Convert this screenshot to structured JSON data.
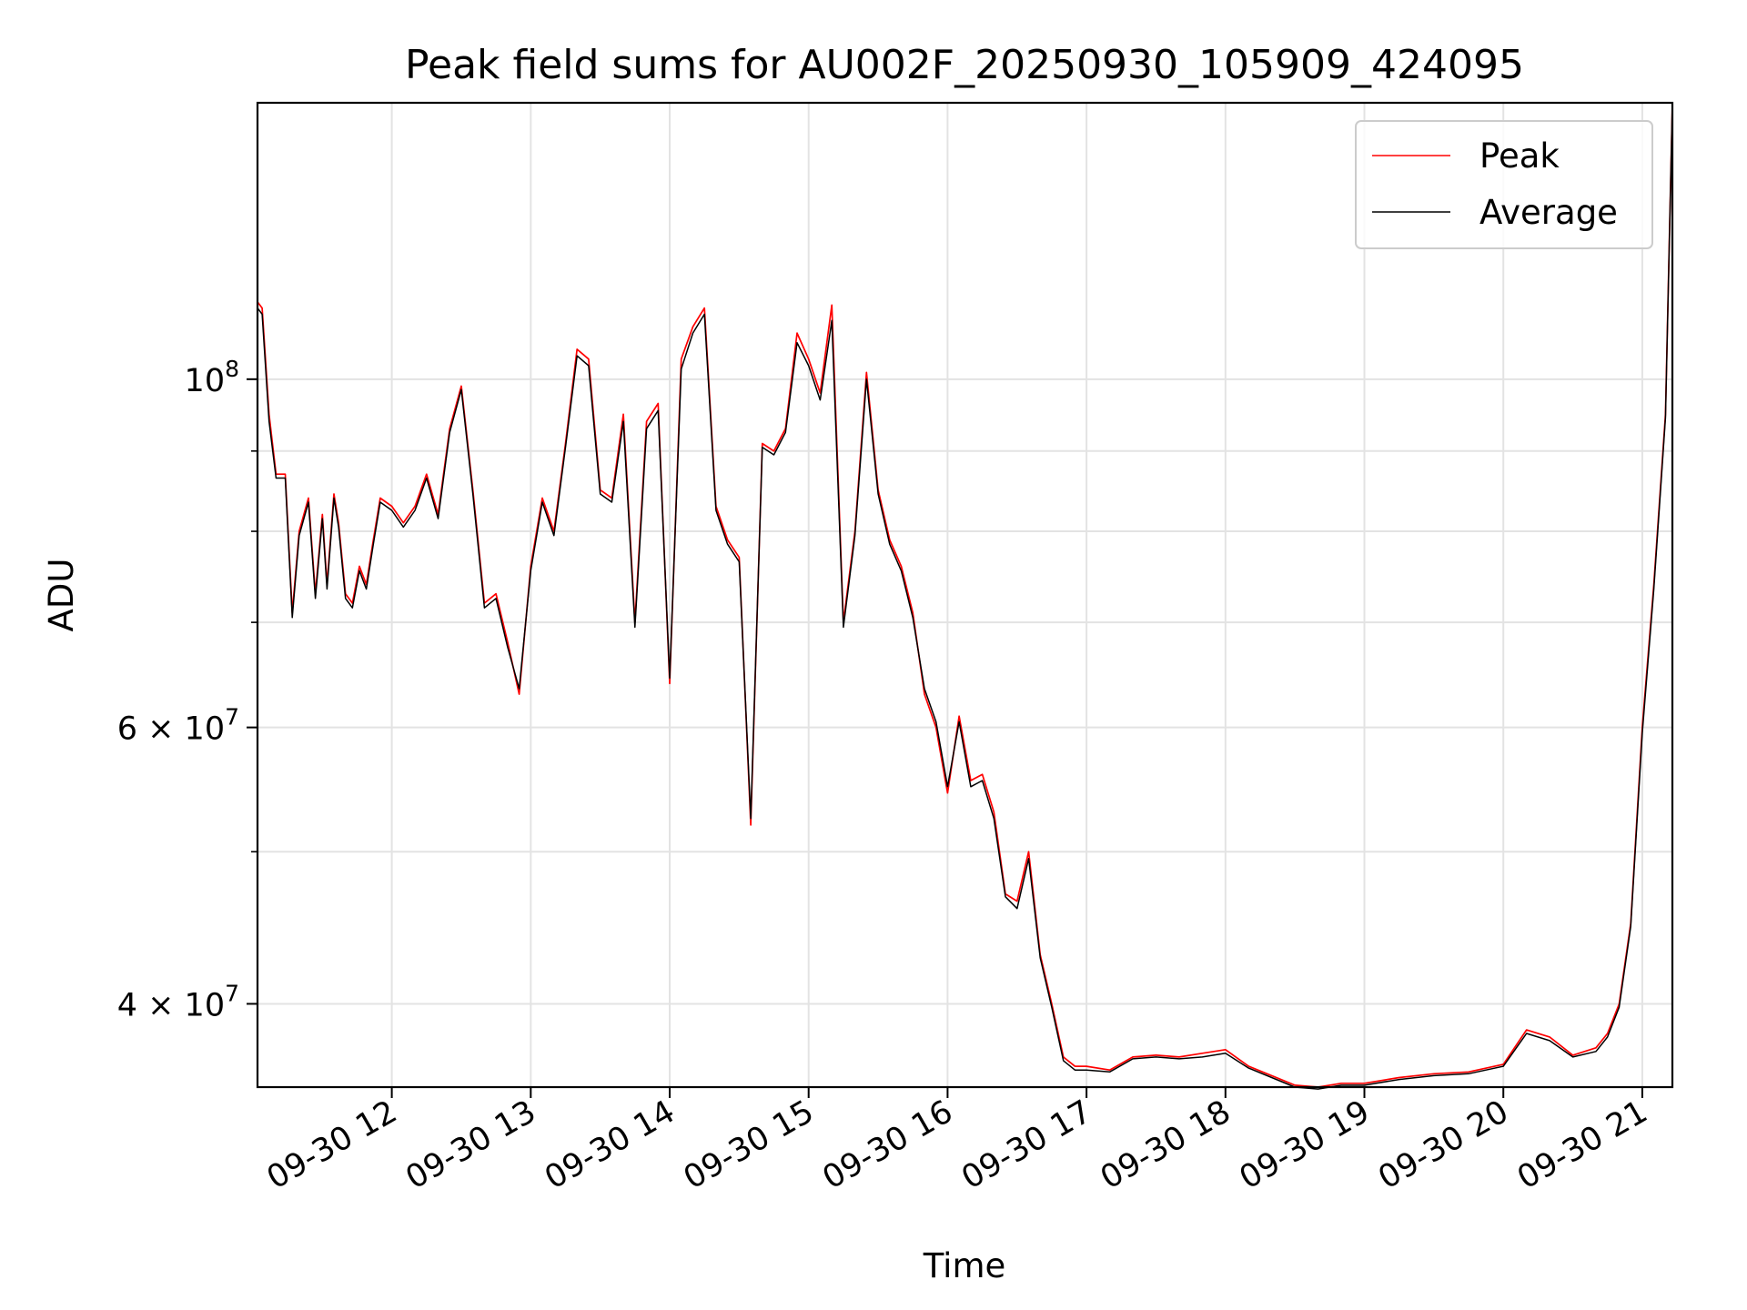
{
  "chart_data": {
    "type": "line",
    "title": "Peak field sums for AU002F_20250930_105909_424095",
    "xlabel": "Time",
    "ylabel": "ADU",
    "yscale": "log",
    "grid": true,
    "legend_position": "top-right",
    "xlim": [
      "2025-09-30 11:02",
      "2025-09-30 21:13"
    ],
    "ylim": [
      35400000,
      150000000
    ],
    "x_ticks": [
      "09-30 12",
      "09-30 13",
      "09-30 14",
      "09-30 15",
      "09-30 16",
      "09-30 17",
      "09-30 18",
      "09-30 19",
      "09-30 20",
      "09-30 21"
    ],
    "x_tick_times": [
      "2025-09-30 12:00",
      "2025-09-30 13:00",
      "2025-09-30 14:00",
      "2025-09-30 15:00",
      "2025-09-30 16:00",
      "2025-09-30 17:00",
      "2025-09-30 18:00",
      "2025-09-30 19:00",
      "2025-09-30 20:00",
      "2025-09-30 21:00"
    ],
    "y_ticks": [
      {
        "value": 100000000,
        "base": "10",
        "exp": "8",
        "mant": ""
      },
      {
        "value": 60000000,
        "base": "10",
        "exp": "7",
        "mant": "6"
      },
      {
        "value": 40000000,
        "base": "10",
        "exp": "7",
        "mant": "4"
      }
    ],
    "y_minor_grid": [
      50000000,
      70000000,
      80000000,
      90000000
    ],
    "x": [
      "2025-09-30 11:02",
      "2025-09-30 11:04",
      "2025-09-30 11:07",
      "2025-09-30 11:10",
      "2025-09-30 11:14",
      "2025-09-30 11:17",
      "2025-09-30 11:20",
      "2025-09-30 11:24",
      "2025-09-30 11:27",
      "2025-09-30 11:30",
      "2025-09-30 11:32",
      "2025-09-30 11:35",
      "2025-09-30 11:37",
      "2025-09-30 11:40",
      "2025-09-30 11:43",
      "2025-09-30 11:46",
      "2025-09-30 11:49",
      "2025-09-30 11:52",
      "2025-09-30 11:55",
      "2025-09-30 12:00",
      "2025-09-30 12:05",
      "2025-09-30 12:10",
      "2025-09-30 12:15",
      "2025-09-30 12:20",
      "2025-09-30 12:25",
      "2025-09-30 12:30",
      "2025-09-30 12:35",
      "2025-09-30 12:40",
      "2025-09-30 12:45",
      "2025-09-30 12:50",
      "2025-09-30 12:55",
      "2025-09-30 13:00",
      "2025-09-30 13:05",
      "2025-09-30 13:10",
      "2025-09-30 13:15",
      "2025-09-30 13:20",
      "2025-09-30 13:25",
      "2025-09-30 13:30",
      "2025-09-30 13:35",
      "2025-09-30 13:40",
      "2025-09-30 13:45",
      "2025-09-30 13:50",
      "2025-09-30 13:55",
      "2025-09-30 14:00",
      "2025-09-30 14:05",
      "2025-09-30 14:10",
      "2025-09-30 14:15",
      "2025-09-30 14:20",
      "2025-09-30 14:25",
      "2025-09-30 14:30",
      "2025-09-30 14:35",
      "2025-09-30 14:40",
      "2025-09-30 14:45",
      "2025-09-30 14:50",
      "2025-09-30 14:55",
      "2025-09-30 15:00",
      "2025-09-30 15:05",
      "2025-09-30 15:10",
      "2025-09-30 15:15",
      "2025-09-30 15:20",
      "2025-09-30 15:25",
      "2025-09-30 15:30",
      "2025-09-30 15:35",
      "2025-09-30 15:40",
      "2025-09-30 15:45",
      "2025-09-30 15:50",
      "2025-09-30 15:55",
      "2025-09-30 16:00",
      "2025-09-30 16:05",
      "2025-09-30 16:10",
      "2025-09-30 16:15",
      "2025-09-30 16:20",
      "2025-09-30 16:25",
      "2025-09-30 16:30",
      "2025-09-30 16:35",
      "2025-09-30 16:40",
      "2025-09-30 16:45",
      "2025-09-30 16:50",
      "2025-09-30 16:55",
      "2025-09-30 17:00",
      "2025-09-30 17:10",
      "2025-09-30 17:20",
      "2025-09-30 17:30",
      "2025-09-30 17:40",
      "2025-09-30 17:50",
      "2025-09-30 18:00",
      "2025-09-30 18:10",
      "2025-09-30 18:20",
      "2025-09-30 18:30",
      "2025-09-30 18:40",
      "2025-09-30 18:50",
      "2025-09-30 19:00",
      "2025-09-30 19:15",
      "2025-09-30 19:30",
      "2025-09-30 19:45",
      "2025-09-30 20:00",
      "2025-09-30 20:10",
      "2025-09-30 20:20",
      "2025-09-30 20:30",
      "2025-09-30 20:40",
      "2025-09-30 20:45",
      "2025-09-30 20:50",
      "2025-09-30 20:55",
      "2025-09-30 21:00",
      "2025-09-30 21:05",
      "2025-09-30 21:10",
      "2025-09-30 21:13"
    ],
    "series": [
      {
        "name": "Peak",
        "color": "#ff0000",
        "values": [
          112000000,
          111000000,
          95000000,
          87000000,
          87000000,
          71000000,
          80000000,
          84000000,
          73000000,
          82000000,
          74000000,
          84500000,
          81000000,
          73000000,
          72000000,
          76000000,
          74000000,
          79000000,
          84000000,
          83000000,
          81000000,
          83000000,
          87000000,
          82000000,
          93000000,
          99000000,
          85000000,
          72000000,
          73000000,
          68000000,
          63000000,
          76000000,
          84000000,
          80000000,
          91000000,
          104500000,
          103000000,
          85000000,
          84000000,
          95000000,
          70000000,
          94000000,
          96500000,
          64000000,
          103000000,
          108000000,
          111000000,
          83000000,
          79000000,
          77000000,
          52000000,
          91000000,
          90000000,
          93000000,
          107000000,
          103000000,
          98000000,
          111500000,
          70000000,
          80000000,
          101000000,
          85000000,
          79000000,
          76000000,
          71000000,
          63000000,
          60000000,
          54500000,
          61000000,
          55500000,
          56000000,
          53000000,
          47000000,
          46500000,
          50000000,
          43000000,
          40000000,
          37000000,
          36500000,
          36500000,
          36300000,
          37000000,
          37100000,
          37000000,
          37200000,
          37400000,
          36500000,
          36000000,
          35500000,
          35400000,
          35600000,
          35600000,
          35900000,
          36100000,
          36200000,
          36600000,
          38500000,
          38100000,
          37100000,
          37500000,
          38300000,
          40000000,
          45000000,
          60000000,
          74000000,
          95000000,
          150000000
        ]
      },
      {
        "name": "Average",
        "color": "#000000",
        "values": [
          111000000,
          110000000,
          94000000,
          86500000,
          86500000,
          70500000,
          79500000,
          83500000,
          72500000,
          81500000,
          73500000,
          84000000,
          80500000,
          72500000,
          71500000,
          75500000,
          73500000,
          78500000,
          83500000,
          82500000,
          80500000,
          82500000,
          86500000,
          81500000,
          92500000,
          98500000,
          84500000,
          71500000,
          72500000,
          67500000,
          63500000,
          75500000,
          83500000,
          79500000,
          90500000,
          103500000,
          102000000,
          84500000,
          83500000,
          94000000,
          69500000,
          93000000,
          95500000,
          64500000,
          101500000,
          107000000,
          110000000,
          82500000,
          78500000,
          76500000,
          52500000,
          90500000,
          89500000,
          92500000,
          105500000,
          102000000,
          97000000,
          109000000,
          69500000,
          79500000,
          100000000,
          84500000,
          78500000,
          75500000,
          70500000,
          63500000,
          60500000,
          55000000,
          60500000,
          55000000,
          55500000,
          52500000,
          46800000,
          46000000,
          49500000,
          42800000,
          39800000,
          36800000,
          36300000,
          36300000,
          36200000,
          36900000,
          37000000,
          36900000,
          37000000,
          37200000,
          36400000,
          35900000,
          35400000,
          35300000,
          35500000,
          35500000,
          35800000,
          36000000,
          36100000,
          36500000,
          38300000,
          37900000,
          37000000,
          37300000,
          38100000,
          39800000,
          44800000,
          59500000,
          73500000,
          94500000,
          150000000
        ]
      }
    ],
    "legend": [
      {
        "label": "Peak",
        "color": "#ff0000"
      },
      {
        "label": "Average",
        "color": "#000000"
      }
    ]
  }
}
